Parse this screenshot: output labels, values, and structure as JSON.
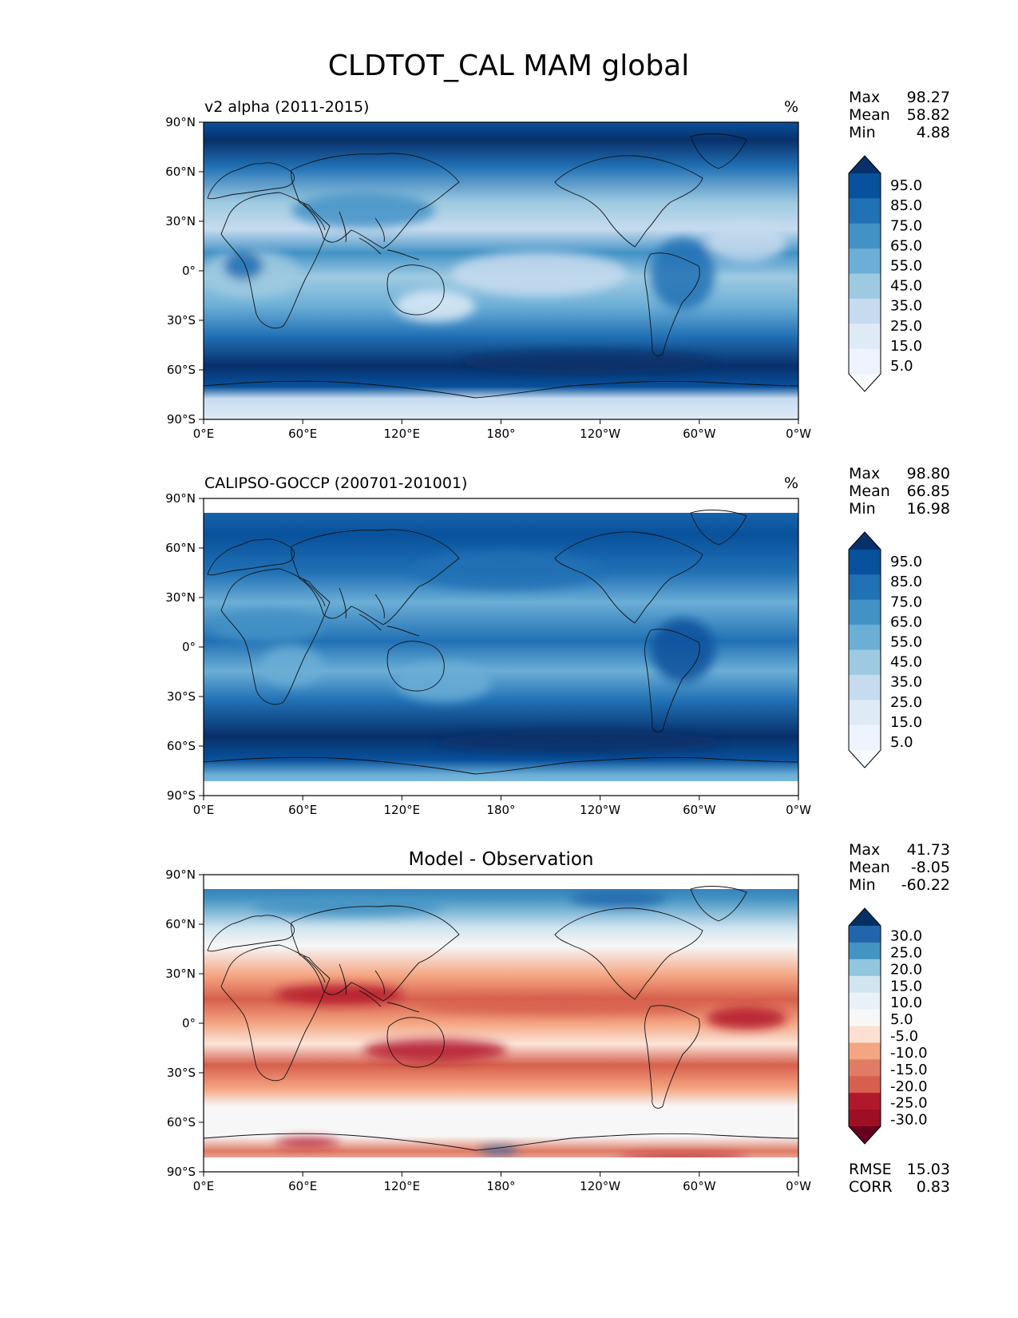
{
  "figure_title": "CLDTOT_CAL MAM global",
  "axes": {
    "lat_ticks": [
      "90°N",
      "60°N",
      "30°N",
      "0°",
      "30°S",
      "60°S",
      "90°S"
    ],
    "lon_ticks": [
      "0°E",
      "60°E",
      "120°E",
      "180°",
      "120°W",
      "60°W",
      "0°W"
    ]
  },
  "panels": [
    {
      "id": "model",
      "left_title": "v2 alpha (2011-2015)",
      "center_title": "",
      "units": "%",
      "stats": [
        {
          "label": "Max",
          "value": "98.27"
        },
        {
          "label": "Mean",
          "value": "58.82"
        },
        {
          "label": "Min",
          "value": "4.88"
        }
      ],
      "colorbar_labels": [
        "95.0",
        "85.0",
        "75.0",
        "65.0",
        "55.0",
        "45.0",
        "35.0",
        "25.0",
        "15.0",
        "5.0"
      ],
      "colorbar_colors": [
        "#08306b",
        "#08519c",
        "#2171b5",
        "#4292c6",
        "#6baed6",
        "#9ecae1",
        "#c6dbef",
        "#deebf7",
        "#eff3ff",
        "#f7fbff"
      ]
    },
    {
      "id": "obs",
      "left_title": "CALIPSO-GOCCP (200701-201001)",
      "center_title": "",
      "units": "%",
      "stats": [
        {
          "label": "Max",
          "value": "98.80"
        },
        {
          "label": "Mean",
          "value": "66.85"
        },
        {
          "label": "Min",
          "value": "16.98"
        }
      ],
      "colorbar_labels": [
        "95.0",
        "85.0",
        "75.0",
        "65.0",
        "55.0",
        "45.0",
        "35.0",
        "25.0",
        "15.0",
        "5.0"
      ],
      "colorbar_colors": [
        "#08306b",
        "#08519c",
        "#2171b5",
        "#4292c6",
        "#6baed6",
        "#9ecae1",
        "#c6dbef",
        "#deebf7",
        "#eff3ff",
        "#f7fbff"
      ]
    },
    {
      "id": "diff",
      "left_title": "",
      "center_title": "Model - Observation",
      "units": "",
      "stats": [
        {
          "label": "Max",
          "value": "41.73"
        },
        {
          "label": "Mean",
          "value": "-8.05"
        },
        {
          "label": "Min",
          "value": "-60.22"
        }
      ],
      "colorbar_labels": [
        "30.0",
        "25.0",
        "20.0",
        "15.0",
        "10.0",
        "5.0",
        "-5.0",
        "-10.0",
        "-15.0",
        "-20.0",
        "-25.0",
        "-30.0"
      ],
      "colorbar_colors": [
        "#053061",
        "#2166ac",
        "#4393c3",
        "#92c5de",
        "#d1e5f0",
        "#e9f1f7",
        "#f7f7f7",
        "#fde0d2",
        "#f4a582",
        "#e07b66",
        "#d6604d",
        "#b2182b",
        "#9e0f24",
        "#67001f"
      ],
      "metrics": [
        {
          "label": "RMSE",
          "value": "15.03"
        },
        {
          "label": "CORR",
          "value": "0.83"
        }
      ]
    }
  ]
}
